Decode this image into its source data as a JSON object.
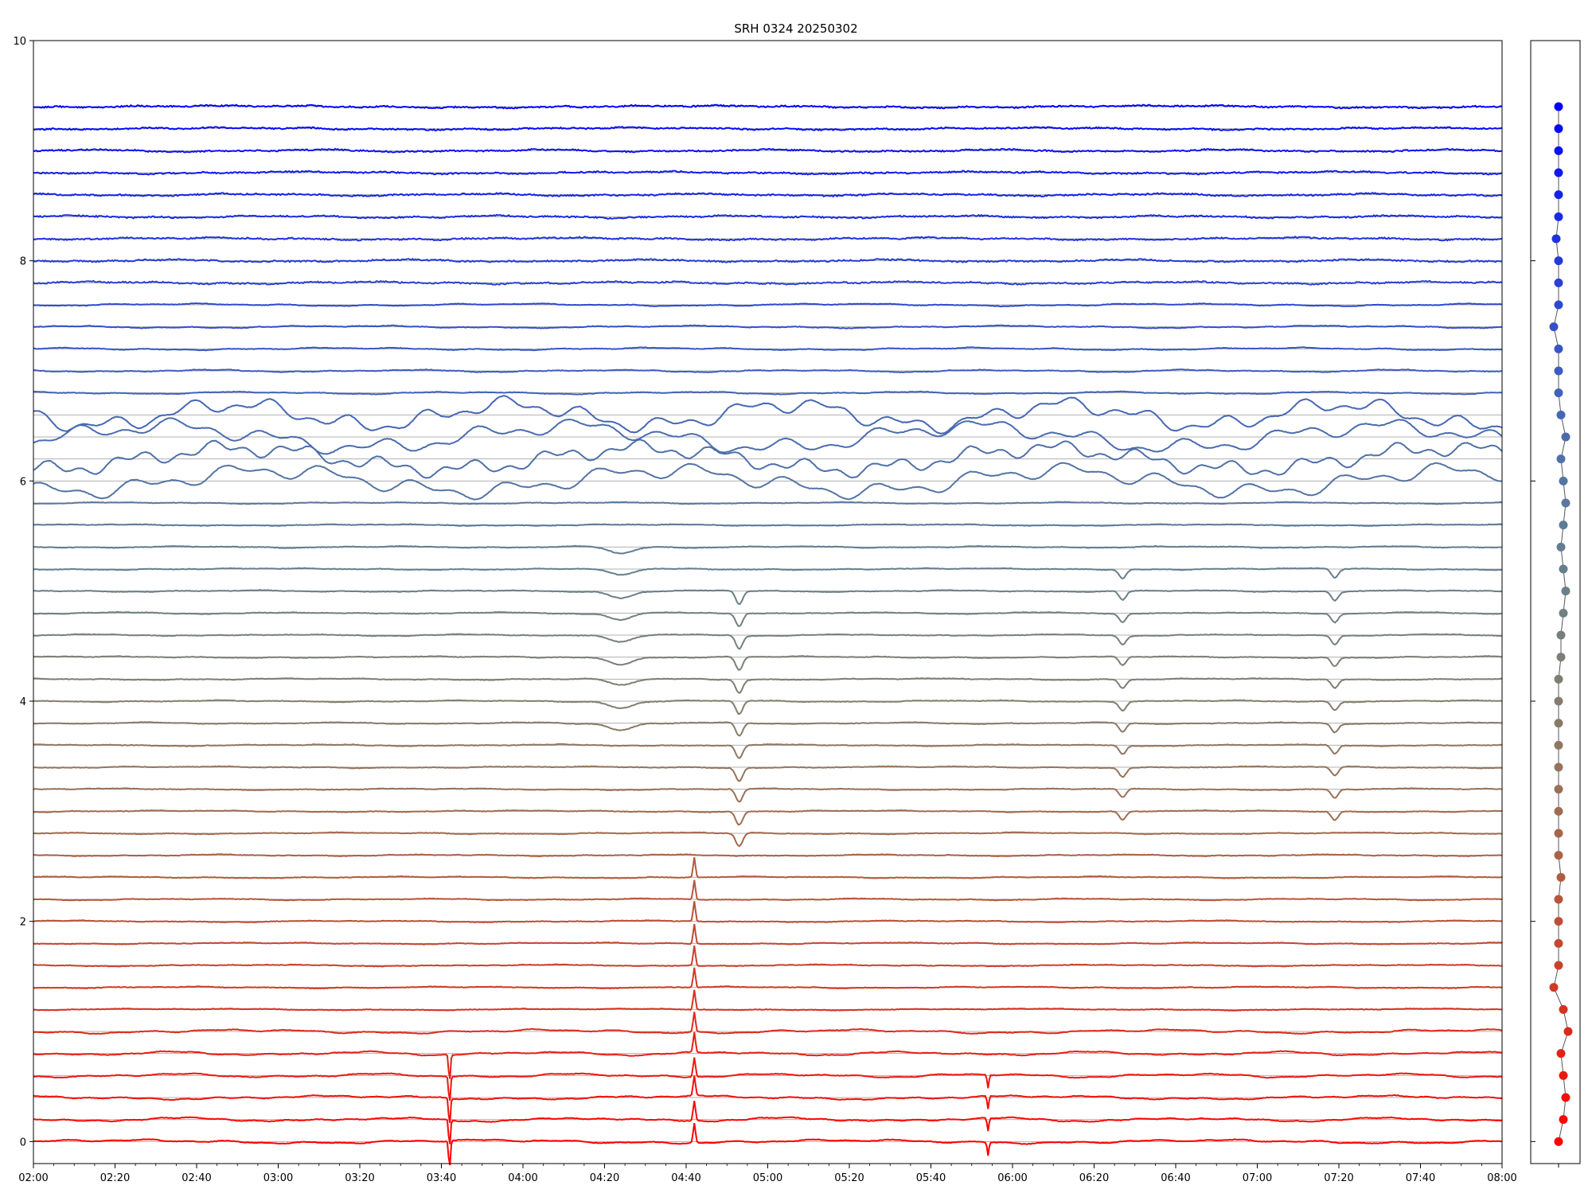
{
  "chart_data": {
    "type": "line",
    "title": "SRH 0324 20250302",
    "xlabel": "",
    "ylabel": "",
    "xlim": [
      "02:00",
      "08:00"
    ],
    "ylim": [
      -0.2,
      10
    ],
    "x_tick_labels": [
      "02:00",
      "02:20",
      "02:40",
      "03:00",
      "03:20",
      "03:40",
      "04:00",
      "04:20",
      "04:40",
      "05:00",
      "05:20",
      "05:40",
      "06:00",
      "06:20",
      "06:40",
      "07:00",
      "07:20",
      "07:40",
      "08:00"
    ],
    "y_tick_labels": [
      "0",
      "2",
      "4",
      "6",
      "8",
      "10"
    ],
    "y_ticks": [
      0,
      2,
      4,
      6,
      8,
      10
    ],
    "grid": "horizontal lines at each trace baseline",
    "legend": "none",
    "n_traces": 48,
    "trace_spacing": 0.2,
    "color_start": "#ff0000",
    "color_end": "#0000ff",
    "baselines": [
      0,
      0.2,
      0.4,
      0.6,
      0.8,
      1.0,
      1.2,
      1.4,
      1.6,
      1.8,
      2.0,
      2.2,
      2.4,
      2.6,
      2.8,
      3.0,
      3.2,
      3.4,
      3.6,
      3.8,
      4.0,
      4.2,
      4.4,
      4.6,
      4.8,
      5.0,
      5.2,
      5.4,
      5.6,
      5.8,
      6.0,
      6.2,
      6.4,
      6.6,
      6.8,
      7.0,
      7.2,
      7.4,
      7.6,
      7.8,
      8.0,
      8.2,
      8.4,
      8.6,
      8.8,
      9.0,
      9.2,
      9.4
    ],
    "side_panel": {
      "description": "per-trace baseline markers",
      "y_values": [
        0,
        0.2,
        0.4,
        0.6,
        0.8,
        1.0,
        1.2,
        1.4,
        1.6,
        1.8,
        2.0,
        2.2,
        2.4,
        2.6,
        2.8,
        3.0,
        3.2,
        3.4,
        3.6,
        3.8,
        4.0,
        4.2,
        4.4,
        4.6,
        4.8,
        5.0,
        5.2,
        5.4,
        5.6,
        5.8,
        6.0,
        6.2,
        6.4,
        6.6,
        6.8,
        7.0,
        7.2,
        7.4,
        7.6,
        7.8,
        8.0,
        8.2,
        8.4,
        8.6,
        8.8,
        9.0,
        9.2,
        9.4
      ],
      "x_offsets": [
        0,
        0.1,
        0.15,
        0.1,
        0.05,
        0.2,
        0.1,
        -0.1,
        0,
        0,
        0,
        0,
        0.05,
        0,
        0,
        0,
        0,
        0,
        0,
        0,
        0,
        0,
        0.05,
        0.05,
        0.1,
        0.15,
        0.1,
        0.05,
        0.1,
        0.15,
        0.1,
        0.05,
        0.15,
        0.05,
        0,
        0,
        0,
        -0.1,
        0,
        0,
        0,
        -0.05,
        0,
        0,
        0,
        0,
        0,
        0
      ]
    },
    "events": [
      {
        "trace_from": 0,
        "trace_to": 4,
        "t": "03:42",
        "amp": -0.25,
        "w": 0.3,
        "type": "spike"
      },
      {
        "trace_from": 0,
        "trace_to": 12,
        "t": "04:42",
        "amp": 0.18,
        "w": 0.4,
        "type": "spike"
      },
      {
        "trace_from": 0,
        "trace_to": 3,
        "t": "05:54",
        "amp": -0.12,
        "w": 0.3,
        "type": "spike"
      },
      {
        "trace_from": 14,
        "trace_to": 25,
        "t": "04:53",
        "amp": -0.12,
        "w": 1.2,
        "type": "dip"
      },
      {
        "trace_from": 15,
        "trace_to": 26,
        "t": "06:27",
        "amp": -0.08,
        "w": 1.2,
        "type": "dip"
      },
      {
        "trace_from": 15,
        "trace_to": 26,
        "t": "07:19",
        "amp": -0.08,
        "w": 1.2,
        "type": "dip"
      },
      {
        "trace_from": 19,
        "trace_to": 27,
        "t": "04:24",
        "amp": -0.06,
        "w": 4,
        "type": "dip"
      }
    ]
  }
}
